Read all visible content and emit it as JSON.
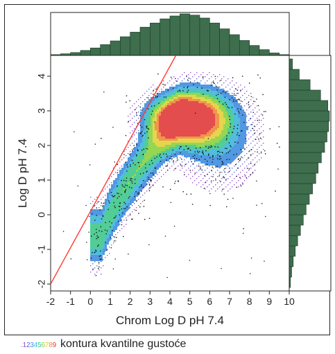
{
  "chart_data": {
    "type": "scatter",
    "xlabel": "Chrom Log D pH 7.4",
    "ylabel": "Log D pH 7.4",
    "xlim": [
      -2,
      10
    ],
    "ylim": [
      -2.2,
      4.6
    ],
    "xticks": [
      "-2",
      "-1",
      "0",
      "1",
      "2",
      "3",
      "4",
      "5",
      "6",
      "7",
      "8",
      "9",
      "10"
    ],
    "yticks": [
      "-2",
      "-1",
      "0",
      "1",
      "2",
      "3",
      "4"
    ],
    "grid": false,
    "overlays": [
      "quantile density contours",
      "identity line y = x",
      "marginal histograms (top: x, right: y)"
    ],
    "identity_line": {
      "x": [
        -2,
        4.3
      ],
      "y": [
        -2,
        4.6
      ],
      "color": "#ff3b30"
    },
    "density_peak": {
      "x": 4.5,
      "y": 2.8
    },
    "top_histogram": {
      "bin_centers": [
        -1.75,
        -1.25,
        -0.75,
        -0.25,
        0.25,
        0.75,
        1.25,
        1.75,
        2.25,
        2.75,
        3.25,
        3.75,
        4.25,
        4.75,
        5.25,
        5.75,
        6.25,
        6.75,
        7.25,
        7.75,
        8.25,
        8.75,
        9.25,
        9.75
      ],
      "relative_heights": [
        0.02,
        0.04,
        0.07,
        0.12,
        0.18,
        0.26,
        0.35,
        0.45,
        0.56,
        0.68,
        0.78,
        0.88,
        0.95,
        1.0,
        0.97,
        0.9,
        0.78,
        0.64,
        0.5,
        0.36,
        0.24,
        0.14,
        0.06,
        0.02
      ]
    },
    "right_histogram": {
      "bin_centers": [
        -1.95,
        -1.65,
        -1.35,
        -1.05,
        -0.75,
        -0.45,
        -0.15,
        0.15,
        0.45,
        0.75,
        1.05,
        1.35,
        1.65,
        1.95,
        2.25,
        2.55,
        2.85,
        3.15,
        3.45,
        3.75,
        4.05,
        4.35
      ],
      "relative_heights": [
        0.03,
        0.06,
        0.1,
        0.15,
        0.21,
        0.28,
        0.35,
        0.42,
        0.5,
        0.58,
        0.66,
        0.72,
        0.8,
        0.88,
        0.94,
        0.98,
        1.0,
        0.96,
        0.78,
        0.52,
        0.25,
        0.08
      ]
    },
    "legend": {
      "digits": [
        ".1",
        "2",
        "3",
        "4",
        "5",
        "6",
        "7",
        "8",
        "9"
      ],
      "digit_colors": [
        "#8a4fc2",
        "#5a62d8",
        "#3f8de0",
        "#3fb6d8",
        "#3fc88a",
        "#8ad23f",
        "#e0c83a",
        "#f08a3a",
        "#e03a3a"
      ],
      "text": "kontura kvantilne gustoće"
    },
    "colors": {
      "scatter": "#111111",
      "histogram_fill": "#3e6e4d",
      "histogram_stroke": "#1f3a27",
      "identity_line": "#ff3b30"
    }
  }
}
